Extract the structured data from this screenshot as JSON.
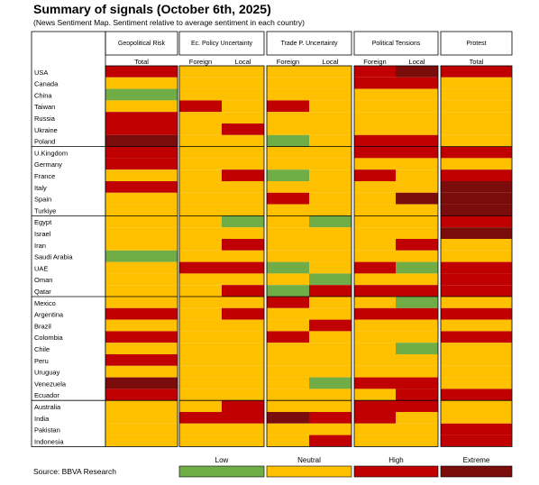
{
  "title": "Summary of signals (October 6th, 2025)",
  "subtitle": "(News Sentiment Map. Sentiment relative to average sentiment in each country)",
  "source": "Source: BBVA Research",
  "colors": {
    "low": "#70ad47",
    "neutral": "#ffc000",
    "high": "#c00000",
    "extreme": "#7b0c0c"
  },
  "chart_data": {
    "type": "heatmap",
    "title": "Summary of signals (October 6th, 2025)",
    "subtitle": "(News Sentiment Map. Sentiment relative to average sentiment in each country)",
    "groups": [
      {
        "name": "Geopolitical Risk",
        "columns": [
          "Total"
        ]
      },
      {
        "name": "Ec. Policy  Uncertainty",
        "columns": [
          "Foreign",
          "Local"
        ]
      },
      {
        "name": "Trade P. Uncertainty",
        "columns": [
          "Foreign",
          "Local"
        ]
      },
      {
        "name": "Political Tensions",
        "columns": [
          "Foreign",
          "Local"
        ]
      },
      {
        "name": "Protest",
        "columns": [
          "Total"
        ]
      }
    ],
    "legend": [
      "Low",
      "Neutral",
      "High",
      "Extreme"
    ],
    "rows": [
      {
        "country": "USA",
        "values": [
          "High",
          "Neutral",
          "Neutral",
          "Neutral",
          "Neutral",
          "High",
          "Extreme",
          "High"
        ]
      },
      {
        "country": "Canada",
        "values": [
          "Neutral",
          "Neutral",
          "Neutral",
          "Neutral",
          "Neutral",
          "High",
          "High",
          "Neutral"
        ]
      },
      {
        "country": "China",
        "values": [
          "Low",
          "Neutral",
          "Neutral",
          "Neutral",
          "Neutral",
          "Neutral",
          "Neutral",
          "Neutral"
        ]
      },
      {
        "country": "Taiwan",
        "values": [
          "Neutral",
          "High",
          "Neutral",
          "High",
          "Neutral",
          "Neutral",
          "Neutral",
          "Neutral"
        ]
      },
      {
        "country": "Russia",
        "values": [
          "High",
          "Neutral",
          "Neutral",
          "Neutral",
          "Neutral",
          "Neutral",
          "Neutral",
          "Neutral"
        ]
      },
      {
        "country": "Ukraine",
        "values": [
          "High",
          "Neutral",
          "High",
          "Neutral",
          "Neutral",
          "Neutral",
          "Neutral",
          "Neutral"
        ]
      },
      {
        "country": "Poland",
        "values": [
          "Extreme",
          "Neutral",
          "Neutral",
          "Low",
          "Neutral",
          "High",
          "High",
          "Neutral"
        ]
      },
      {
        "country": "U.Kingdom",
        "values": [
          "High",
          "Neutral",
          "Neutral",
          "Neutral",
          "Neutral",
          "High",
          "High",
          "High"
        ]
      },
      {
        "country": "Germany",
        "values": [
          "High",
          "Neutral",
          "Neutral",
          "Neutral",
          "Neutral",
          "Neutral",
          "Neutral",
          "Neutral"
        ]
      },
      {
        "country": "France",
        "values": [
          "Neutral",
          "Neutral",
          "High",
          "Low",
          "Neutral",
          "High",
          "Neutral",
          "High"
        ]
      },
      {
        "country": "Italy",
        "values": [
          "High",
          "Neutral",
          "Neutral",
          "Neutral",
          "Neutral",
          "Neutral",
          "Neutral",
          "Extreme"
        ]
      },
      {
        "country": "Spain",
        "values": [
          "Neutral",
          "Neutral",
          "Neutral",
          "High",
          "Neutral",
          "Neutral",
          "Extreme",
          "Extreme"
        ]
      },
      {
        "country": "Turkiye",
        "values": [
          "Neutral",
          "Neutral",
          "Neutral",
          "Neutral",
          "Neutral",
          "Neutral",
          "Neutral",
          "Extreme"
        ]
      },
      {
        "country": "Egypt",
        "values": [
          "Neutral",
          "Neutral",
          "Low",
          "Neutral",
          "Low",
          "Neutral",
          "Neutral",
          "High"
        ]
      },
      {
        "country": "Israel",
        "values": [
          "Neutral",
          "Neutral",
          "Neutral",
          "Neutral",
          "Neutral",
          "Neutral",
          "Neutral",
          "Extreme"
        ]
      },
      {
        "country": "Iran",
        "values": [
          "Neutral",
          "Neutral",
          "High",
          "Neutral",
          "Neutral",
          "Neutral",
          "High",
          "Neutral"
        ]
      },
      {
        "country": "Saudi Arabia",
        "values": [
          "Low",
          "Neutral",
          "Neutral",
          "Neutral",
          "Neutral",
          "Neutral",
          "Neutral",
          "Neutral"
        ]
      },
      {
        "country": "UAE",
        "values": [
          "Neutral",
          "High",
          "High",
          "Low",
          "Neutral",
          "High",
          "Low",
          "High"
        ]
      },
      {
        "country": "Oman",
        "values": [
          "Neutral",
          "Neutral",
          "Neutral",
          "Neutral",
          "Low",
          "Neutral",
          "Neutral",
          "High"
        ]
      },
      {
        "country": "Qatar",
        "values": [
          "Neutral",
          "Neutral",
          "High",
          "Low",
          "High",
          "High",
          "High",
          "High"
        ]
      },
      {
        "country": "Mexico",
        "values": [
          "Neutral",
          "Neutral",
          "Neutral",
          "High",
          "Neutral",
          "Neutral",
          "Low",
          "Neutral"
        ]
      },
      {
        "country": "Argentina",
        "values": [
          "High",
          "Neutral",
          "High",
          "Neutral",
          "Neutral",
          "High",
          "High",
          "High"
        ]
      },
      {
        "country": "Brazil",
        "values": [
          "Neutral",
          "Neutral",
          "Neutral",
          "Neutral",
          "High",
          "Neutral",
          "Neutral",
          "Neutral"
        ]
      },
      {
        "country": "Colombia",
        "values": [
          "High",
          "Neutral",
          "Neutral",
          "High",
          "Neutral",
          "Neutral",
          "Neutral",
          "High"
        ]
      },
      {
        "country": "Chile",
        "values": [
          "Neutral",
          "Neutral",
          "Neutral",
          "Neutral",
          "Neutral",
          "Neutral",
          "Low",
          "Neutral"
        ]
      },
      {
        "country": "Peru",
        "values": [
          "High",
          "Neutral",
          "Neutral",
          "Neutral",
          "Neutral",
          "Neutral",
          "Neutral",
          "Neutral"
        ]
      },
      {
        "country": "Uruguay",
        "values": [
          "Neutral",
          "Neutral",
          "Neutral",
          "Neutral",
          "Neutral",
          "Neutral",
          "Neutral",
          "Neutral"
        ]
      },
      {
        "country": "Venezuela",
        "values": [
          "Extreme",
          "Neutral",
          "Neutral",
          "Neutral",
          "Low",
          "High",
          "High",
          "Neutral"
        ]
      },
      {
        "country": "Ecuador",
        "values": [
          "High",
          "Neutral",
          "Neutral",
          "Neutral",
          "Neutral",
          "Neutral",
          "High",
          "High"
        ]
      },
      {
        "country": "Australia",
        "values": [
          "Neutral",
          "Neutral",
          "High",
          "Neutral",
          "Neutral",
          "High",
          "High",
          "Neutral"
        ]
      },
      {
        "country": "India",
        "values": [
          "Neutral",
          "High",
          "High",
          "Extreme",
          "High",
          "High",
          "Neutral",
          "Neutral"
        ]
      },
      {
        "country": "Pakistan",
        "values": [
          "Neutral",
          "Neutral",
          "Neutral",
          "Neutral",
          "Neutral",
          "Neutral",
          "Neutral",
          "High"
        ]
      },
      {
        "country": "Indonesia",
        "values": [
          "Neutral",
          "Neutral",
          "Neutral",
          "Neutral",
          "High",
          "Neutral",
          "Neutral",
          "High"
        ]
      }
    ]
  }
}
